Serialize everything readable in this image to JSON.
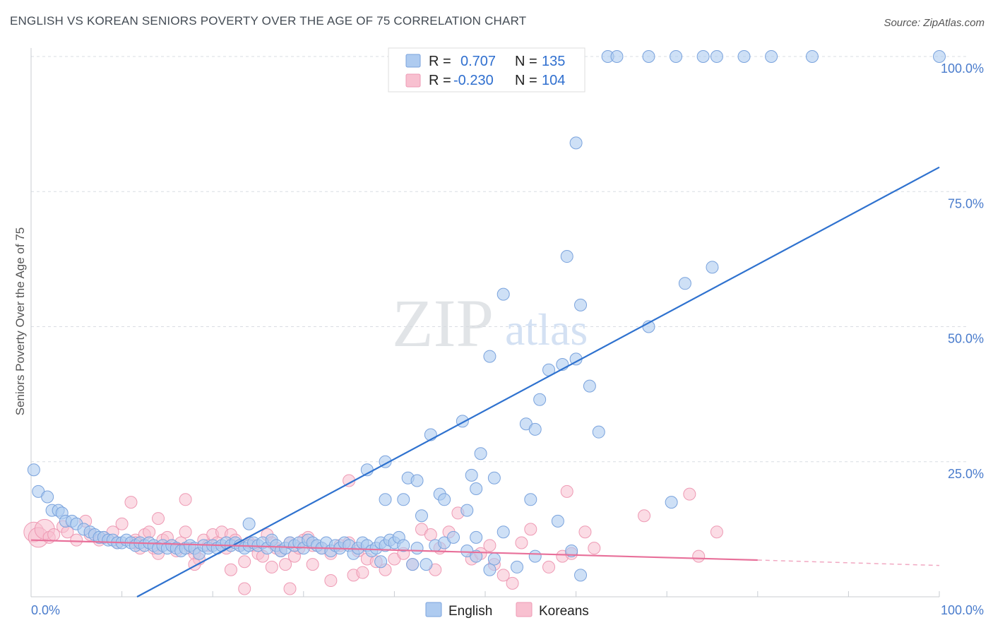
{
  "header": {
    "title": "ENGLISH VS KOREAN SENIORS POVERTY OVER THE AGE OF 75 CORRELATION CHART",
    "source": "Source: ZipAtlas.com"
  },
  "watermark": {
    "zip": "ZIP",
    "atlas": "atlas"
  },
  "legend": {
    "rows": [
      {
        "r_label": "R =",
        "r_value": "0.707",
        "n_label": "N =",
        "n_value": "135",
        "color": "#a9c7ef"
      },
      {
        "r_label": "R =",
        "r_value": "-0.230",
        "n_label": "N =",
        "n_value": "104",
        "color": "#f6b6c9"
      }
    ]
  },
  "bottom_legend": {
    "english": "English",
    "koreans": "Koreans"
  },
  "colors": {
    "english_fill": "#aecbf0",
    "english_stroke": "#7aa3dd",
    "english_line": "#2f72cf",
    "korean_fill": "#f8c0d0",
    "korean_stroke": "#ee9ab4",
    "korean_line": "#e8709a",
    "tick_text": "#4a7ccc"
  },
  "chart_data": {
    "type": "scatter",
    "title": "ENGLISH VS KOREAN SENIORS POVERTY OVER THE AGE OF 75 CORRELATION CHART",
    "xlabel": "",
    "ylabel": "Seniors Poverty Over the Age of 75",
    "xlim": [
      0,
      100
    ],
    "ylim": [
      0,
      102
    ],
    "x_tick_labels": [
      "0.0%",
      "100.0%"
    ],
    "y_ticks": [
      25,
      50,
      75,
      100
    ],
    "y_tick_labels": [
      "25.0%",
      "50.0%",
      "75.0%",
      "100.0%"
    ],
    "grid": true,
    "legend_position": "top-center",
    "series": [
      {
        "name": "English",
        "r": 0.707,
        "n": 135,
        "trend": {
          "x": [
            0,
            100
          ],
          "y": [
            -10.5,
            79.5
          ],
          "dashed_from": 100
        },
        "points": [
          [
            0.3,
            23.5
          ],
          [
            0.8,
            19.5
          ],
          [
            1.8,
            18.5
          ],
          [
            2.3,
            16.0
          ],
          [
            3.0,
            16.0
          ],
          [
            3.4,
            15.5
          ],
          [
            3.8,
            14.0
          ],
          [
            4.5,
            14.0
          ],
          [
            5.0,
            13.5
          ],
          [
            5.8,
            12.5
          ],
          [
            6.5,
            12.0
          ],
          [
            7.0,
            11.5
          ],
          [
            7.5,
            11.0
          ],
          [
            8.0,
            11.0
          ],
          [
            8.5,
            10.5
          ],
          [
            9.0,
            10.5
          ],
          [
            9.5,
            10.0
          ],
          [
            10.0,
            10.0
          ],
          [
            10.5,
            10.5
          ],
          [
            11.0,
            10.0
          ],
          [
            11.5,
            9.5
          ],
          [
            12.0,
            10.0
          ],
          [
            12.5,
            9.5
          ],
          [
            13.0,
            10.0
          ],
          [
            13.5,
            9.5
          ],
          [
            14.0,
            9.0
          ],
          [
            14.5,
            9.5
          ],
          [
            15.0,
            9.0
          ],
          [
            15.5,
            9.5
          ],
          [
            16.0,
            9.0
          ],
          [
            16.5,
            8.5
          ],
          [
            17.0,
            9.0
          ],
          [
            17.5,
            9.5
          ],
          [
            18.0,
            9.0
          ],
          [
            18.5,
            8.0
          ],
          [
            19.0,
            9.5
          ],
          [
            19.5,
            9.0
          ],
          [
            20.0,
            9.5
          ],
          [
            20.5,
            9.0
          ],
          [
            21.0,
            9.5
          ],
          [
            21.5,
            10.0
          ],
          [
            22.0,
            9.5
          ],
          [
            22.5,
            10.0
          ],
          [
            23.0,
            9.5
          ],
          [
            23.5,
            9.0
          ],
          [
            24.0,
            9.5
          ],
          [
            24.5,
            10.0
          ],
          [
            25.0,
            9.5
          ],
          [
            25.5,
            10.0
          ],
          [
            26.0,
            9.0
          ],
          [
            26.5,
            10.5
          ],
          [
            27.0,
            9.5
          ],
          [
            27.5,
            8.5
          ],
          [
            28.0,
            9.0
          ],
          [
            28.5,
            10.0
          ],
          [
            29.0,
            9.5
          ],
          [
            29.5,
            10.0
          ],
          [
            30.0,
            9.0
          ],
          [
            30.5,
            10.5
          ],
          [
            31.0,
            10.0
          ],
          [
            31.5,
            9.5
          ],
          [
            32.0,
            9.0
          ],
          [
            32.5,
            10.0
          ],
          [
            33.0,
            8.5
          ],
          [
            33.5,
            9.5
          ],
          [
            34.0,
            9.0
          ],
          [
            34.5,
            10.0
          ],
          [
            35.0,
            9.5
          ],
          [
            35.5,
            8.0
          ],
          [
            36.0,
            9.0
          ],
          [
            36.5,
            10.0
          ],
          [
            37.0,
            9.5
          ],
          [
            37.5,
            8.5
          ],
          [
            38.0,
            9.0
          ],
          [
            38.5,
            10.0
          ],
          [
            39.0,
            9.5
          ],
          [
            39.5,
            10.5
          ],
          [
            40.0,
            10.0
          ],
          [
            40.5,
            11.0
          ],
          [
            41.0,
            9.5
          ],
          [
            42.0,
            6.0
          ],
          [
            42.5,
            9.0
          ],
          [
            43.5,
            6.0
          ],
          [
            44.5,
            9.5
          ],
          [
            45.5,
            10.0
          ],
          [
            38.5,
            6.5
          ],
          [
            48.0,
            8.5
          ],
          [
            49.0,
            7.5
          ],
          [
            51.0,
            7.0
          ],
          [
            46.5,
            11.0
          ],
          [
            24.0,
            13.5
          ],
          [
            49.0,
            11.0
          ],
          [
            53.5,
            5.5
          ],
          [
            55.5,
            7.5
          ],
          [
            50.5,
            5.0
          ],
          [
            39.0,
            18.0
          ],
          [
            37.0,
            23.5
          ],
          [
            39.0,
            25.0
          ],
          [
            41.0,
            18.0
          ],
          [
            41.5,
            22.0
          ],
          [
            42.5,
            21.5
          ],
          [
            43.0,
            15.0
          ],
          [
            45.0,
            19.0
          ],
          [
            45.5,
            18.0
          ],
          [
            48.0,
            16.0
          ],
          [
            49.0,
            20.0
          ],
          [
            48.5,
            22.5
          ],
          [
            49.5,
            26.5
          ],
          [
            51.0,
            22.0
          ],
          [
            52.0,
            12.0
          ],
          [
            55.0,
            18.0
          ],
          [
            58.0,
            14.0
          ],
          [
            59.5,
            8.5
          ],
          [
            60.5,
            4.0
          ],
          [
            70.5,
            17.5
          ],
          [
            44.0,
            30.0
          ],
          [
            47.5,
            32.5
          ],
          [
            54.5,
            32.0
          ],
          [
            55.5,
            31.0
          ],
          [
            56.0,
            36.5
          ],
          [
            57.0,
            42.0
          ],
          [
            58.5,
            43.0
          ],
          [
            60.0,
            44.0
          ],
          [
            61.5,
            39.0
          ],
          [
            62.5,
            30.5
          ],
          [
            50.5,
            44.5
          ],
          [
            52.0,
            56.0
          ],
          [
            59.0,
            63.0
          ],
          [
            60.5,
            54.0
          ],
          [
            68.0,
            50.0
          ],
          [
            72.0,
            58.0
          ],
          [
            75.0,
            61.0
          ],
          [
            60.0,
            84.0
          ],
          [
            63.5,
            100.0
          ],
          [
            64.5,
            100.0
          ],
          [
            68.0,
            100.0
          ],
          [
            71.0,
            100.0
          ],
          [
            74.0,
            100.0
          ],
          [
            75.5,
            100.0
          ],
          [
            78.5,
            100.0
          ],
          [
            81.5,
            100.0
          ],
          [
            86.0,
            100.0
          ],
          [
            100.0,
            100.0
          ],
          [
            58.0,
            100.0
          ]
        ]
      },
      {
        "name": "Koreans",
        "r": -0.23,
        "n": 104,
        "trend": {
          "x": [
            0,
            80
          ],
          "y": [
            10.5,
            6.8
          ],
          "dashed_to": 100,
          "dashed_end_y": 5.8
        },
        "points": [
          [
            0.3,
            12.0
          ],
          [
            0.8,
            11.0
          ],
          [
            1.5,
            12.5
          ],
          [
            2.0,
            11.0
          ],
          [
            2.5,
            11.5
          ],
          [
            3.5,
            13.0
          ],
          [
            4.0,
            12.0
          ],
          [
            5.0,
            10.5
          ],
          [
            6.0,
            14.0
          ],
          [
            6.5,
            11.5
          ],
          [
            7.5,
            10.5
          ],
          [
            8.0,
            11.0
          ],
          [
            9.0,
            12.0
          ],
          [
            9.5,
            10.0
          ],
          [
            10.0,
            13.5
          ],
          [
            11.0,
            17.5
          ],
          [
            11.5,
            10.5
          ],
          [
            12.0,
            9.0
          ],
          [
            12.5,
            11.5
          ],
          [
            13.0,
            12.0
          ],
          [
            13.5,
            9.0
          ],
          [
            14.0,
            8.0
          ],
          [
            14.5,
            10.5
          ],
          [
            15.0,
            11.0
          ],
          [
            15.5,
            9.5
          ],
          [
            16.0,
            8.5
          ],
          [
            16.5,
            10.0
          ],
          [
            17.0,
            12.0
          ],
          [
            17.5,
            9.0
          ],
          [
            18.0,
            8.0
          ],
          [
            18.5,
            7.0
          ],
          [
            19.0,
            10.5
          ],
          [
            19.5,
            9.5
          ],
          [
            20.0,
            11.5
          ],
          [
            20.5,
            10.0
          ],
          [
            21.0,
            12.0
          ],
          [
            21.5,
            9.0
          ],
          [
            22.0,
            11.5
          ],
          [
            22.5,
            10.5
          ],
          [
            23.0,
            9.5
          ],
          [
            23.5,
            6.5
          ],
          [
            24.0,
            10.0
          ],
          [
            24.5,
            9.5
          ],
          [
            25.0,
            8.0
          ],
          [
            25.5,
            7.5
          ],
          [
            26.0,
            11.5
          ],
          [
            26.5,
            10.0
          ],
          [
            27.0,
            9.0
          ],
          [
            27.5,
            8.5
          ],
          [
            28.0,
            6.0
          ],
          [
            28.5,
            10.0
          ],
          [
            29.0,
            7.5
          ],
          [
            29.5,
            9.0
          ],
          [
            30.0,
            10.5
          ],
          [
            30.5,
            11.0
          ],
          [
            31.0,
            9.5
          ],
          [
            32.0,
            9.0
          ],
          [
            33.0,
            8.0
          ],
          [
            34.0,
            9.5
          ],
          [
            35.0,
            10.0
          ],
          [
            36.0,
            8.5
          ],
          [
            37.0,
            7.0
          ],
          [
            38.0,
            6.5
          ],
          [
            39.0,
            5.0
          ],
          [
            40.0,
            7.0
          ],
          [
            41.0,
            8.0
          ],
          [
            42.0,
            6.0
          ],
          [
            43.0,
            12.5
          ],
          [
            44.0,
            11.5
          ],
          [
            45.0,
            9.0
          ],
          [
            46.0,
            12.0
          ],
          [
            47.0,
            15.5
          ],
          [
            48.5,
            7.0
          ],
          [
            49.5,
            8.0
          ],
          [
            51.0,
            6.0
          ],
          [
            52.0,
            4.0
          ],
          [
            53.0,
            2.5
          ],
          [
            54.0,
            10.0
          ],
          [
            55.0,
            12.5
          ],
          [
            57.0,
            5.5
          ],
          [
            58.5,
            7.5
          ],
          [
            59.5,
            8.0
          ],
          [
            61.0,
            12.0
          ],
          [
            62.0,
            9.0
          ],
          [
            23.5,
            1.5
          ],
          [
            28.5,
            1.5
          ],
          [
            33.0,
            3.0
          ],
          [
            35.5,
            4.0
          ],
          [
            17.0,
            18.0
          ],
          [
            35.0,
            21.5
          ],
          [
            59.0,
            19.5
          ],
          [
            67.5,
            15.0
          ],
          [
            72.5,
            19.0
          ],
          [
            75.5,
            12.0
          ],
          [
            73.5,
            7.5
          ],
          [
            11.5,
            10.0
          ],
          [
            14.0,
            14.5
          ],
          [
            18.0,
            6.0
          ],
          [
            22.0,
            5.0
          ],
          [
            26.5,
            5.5
          ],
          [
            31.0,
            6.0
          ],
          [
            36.5,
            4.5
          ],
          [
            44.5,
            5.0
          ],
          [
            50.5,
            9.5
          ]
        ]
      }
    ]
  }
}
